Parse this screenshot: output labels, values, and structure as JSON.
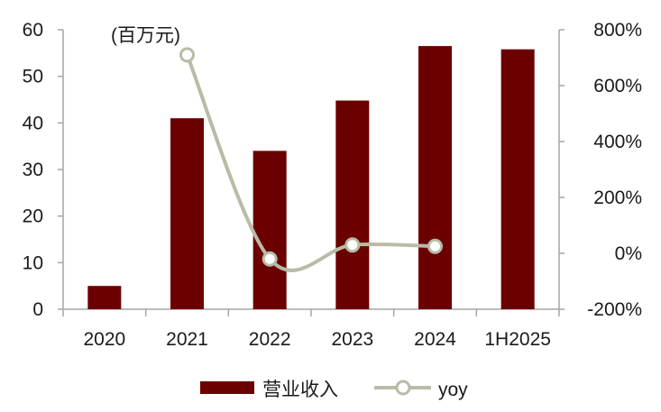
{
  "chart_data": {
    "type": "bar",
    "unit_label": "(百万元)",
    "categories": [
      "2020",
      "2021",
      "2022",
      "2023",
      "2024",
      "1H2025"
    ],
    "series": [
      {
        "name": "营业收入",
        "type": "bar",
        "axis": "left",
        "color": "#6b0000",
        "values": [
          5.0,
          41.0,
          34.0,
          44.8,
          56.5,
          55.8
        ]
      },
      {
        "name": "yoy",
        "type": "line",
        "axis": "right",
        "color": "#b9bba6",
        "values": [
          null,
          710,
          -20,
          30,
          25,
          null
        ]
      }
    ],
    "ylim_left": [
      0,
      60
    ],
    "yticks_left": [
      "0",
      "10",
      "20",
      "30",
      "40",
      "50",
      "60"
    ],
    "ylim_right": [
      -200,
      800
    ],
    "yticks_right": [
      "-200%",
      "0%",
      "200%",
      "400%",
      "600%",
      "800%"
    ],
    "legend": {
      "position": "bottom",
      "entries": [
        "营业收入",
        "yoy"
      ]
    },
    "grid": false
  }
}
